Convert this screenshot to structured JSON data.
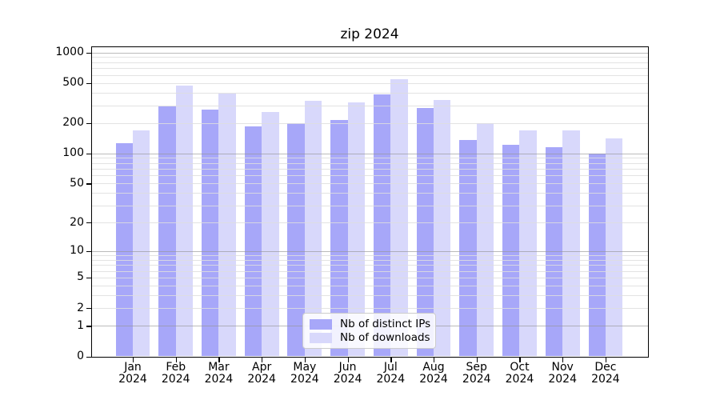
{
  "title": "zip 2024",
  "chart_data": {
    "type": "bar",
    "title": "zip 2024",
    "categories": [
      "Jan 2024",
      "Feb 2024",
      "Mar 2024",
      "Apr 2024",
      "May 2024",
      "Jun 2024",
      "Jul 2024",
      "Aug 2024",
      "Sep 2024",
      "Oct 2024",
      "Nov 2024",
      "Dec 2024"
    ],
    "series": [
      {
        "name": "Nb of distinct IPs",
        "color": "#a7a7f9",
        "values": [
          126,
          295,
          274,
          185,
          201,
          215,
          385,
          281,
          136,
          122,
          116,
          100
        ]
      },
      {
        "name": "Nb of downloads",
        "color": "#d8d8fb",
        "values": [
          170,
          468,
          390,
          256,
          331,
          320,
          549,
          341,
          200,
          170,
          168,
          140
        ]
      }
    ],
    "xlabel": "",
    "ylabel": "",
    "yscale": "log1p",
    "yticks": [
      0,
      1,
      2,
      5,
      10,
      20,
      50,
      100,
      200,
      500,
      1000
    ],
    "ylim": [
      0,
      1150
    ],
    "grid": true,
    "grid_major_at": [
      1,
      10,
      100,
      1000
    ],
    "legend_position": "lower center",
    "legend_entries": [
      "Nb of distinct IPs",
      "Nb of downloads"
    ]
  },
  "colors": {
    "background": "#ffffff",
    "bar_dark": "#a7a7f9",
    "bar_light": "#d8d8fb",
    "grid_major": "#b0b0b0",
    "grid_minor": "#e3e3e3",
    "frame": "#000000"
  }
}
